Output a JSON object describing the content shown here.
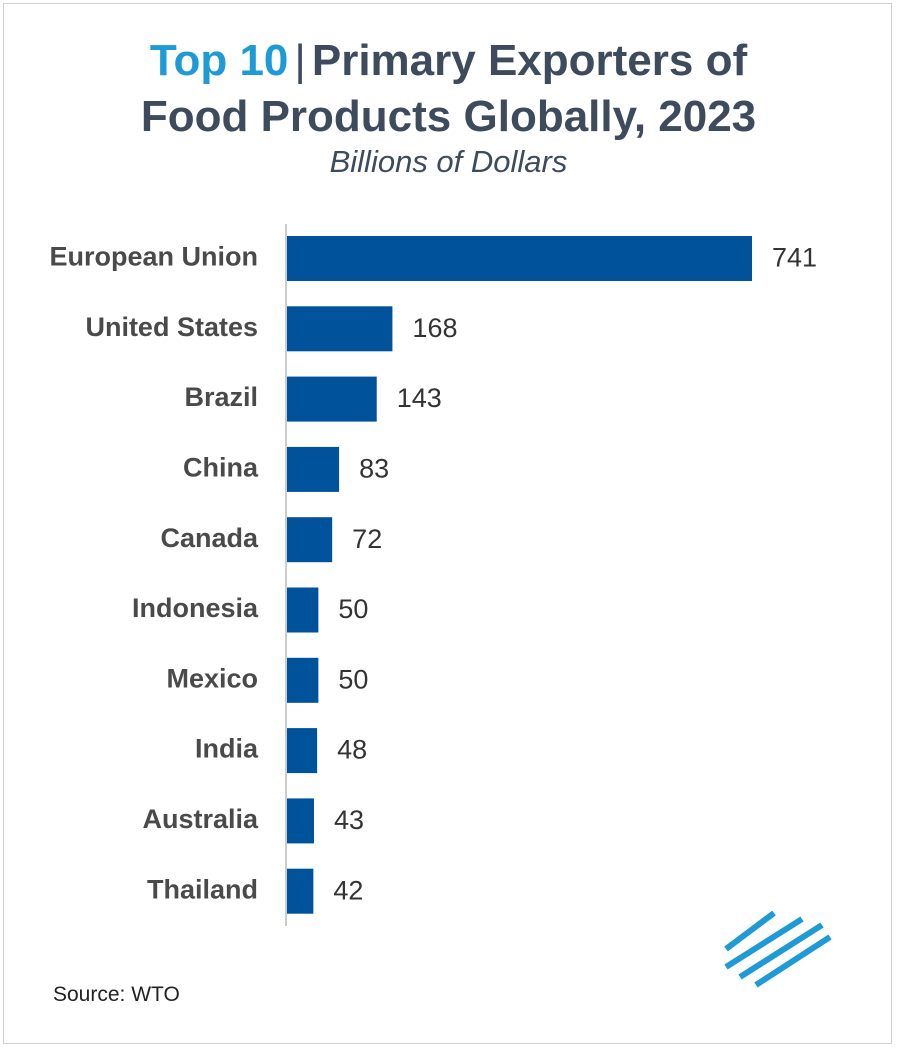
{
  "chart_data": {
    "type": "bar",
    "orientation": "horizontal",
    "title_highlight": "Top 10",
    "title_separator": "|",
    "title_line1": "Primary Exporters of",
    "title_line2": "Food Products Globally, 2023",
    "subtitle": "Billions of Dollars",
    "categories": [
      "European Union",
      "United States",
      "Brazil",
      "China",
      "Canada",
      "Indonesia",
      "Mexico",
      "India",
      "Australia",
      "Thailand"
    ],
    "values": [
      741,
      168,
      143,
      83,
      72,
      50,
      50,
      48,
      43,
      42
    ],
    "xlim": [
      0,
      741
    ],
    "grid": false,
    "legend": "none",
    "bar_color": "#00529b"
  },
  "source": "Source: WTO",
  "logo": {
    "icon": "diagonal-lines-logo-icon",
    "color": "#1e9ad6"
  }
}
